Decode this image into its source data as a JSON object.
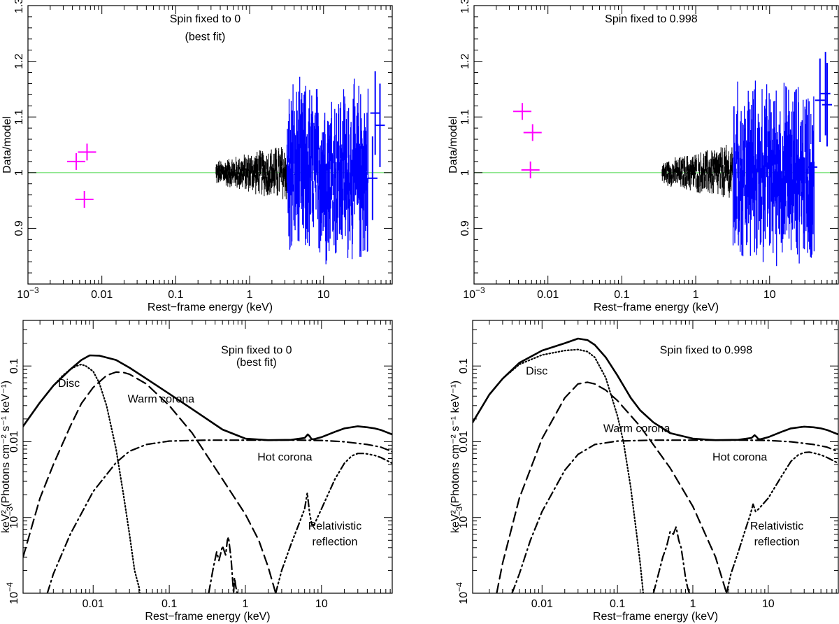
{
  "colors": {
    "data_black": "#000000",
    "data_blue": "#0000ff",
    "data_magenta": "#ff00ff",
    "unity_line": "#66dd66"
  },
  "panels": [
    {
      "chart_data": {
        "type": "scatter",
        "xlabel": "Rest−frame energy (keV)",
        "ylabel": "Data/model",
        "xscale": "log",
        "xlim": [
          0.001,
          85
        ],
        "yscale": "linear",
        "ylim": [
          0.8,
          1.3
        ],
        "xticks": [
          {
            "v": 0.001,
            "base": "10",
            "exp": "−3"
          },
          {
            "v": 0.01,
            "label": "0.01"
          },
          {
            "v": 0.1,
            "label": "0.1"
          },
          {
            "v": 1,
            "label": "1"
          },
          {
            "v": 10,
            "label": "10"
          }
        ],
        "yticks": [
          {
            "v": 0.9,
            "label": "0.9"
          },
          {
            "v": 1,
            "label": "1"
          },
          {
            "v": 1.1,
            "label": "1.1"
          },
          {
            "v": 1.2,
            "label": "1.2"
          },
          {
            "v": 1.3,
            "label": "1.3"
          }
        ],
        "annotations": [
          {
            "text": "Spin fixed to 0",
            "x": 0.25,
            "y": 1.27
          },
          {
            "text": "(best fit)",
            "x": 0.25,
            "y": 1.238
          }
        ],
        "reference_line": 1.0,
        "uv_points": [
          {
            "x": 0.0045,
            "y": 1.02
          },
          {
            "x": 0.0058,
            "y": 0.952
          },
          {
            "x": 0.0063,
            "y": 1.037
          }
        ],
        "xray_soft": {
          "xmin": 0.35,
          "xmax": 3.2,
          "scatter": [
            0.975,
            1.03
          ],
          "mean": 1.0
        },
        "xray_hard": {
          "xmin": 3.2,
          "xmax": 40,
          "scatter": [
            0.92,
            1.08
          ],
          "mean": 1.0
        },
        "xray_hard_points": [
          {
            "x": 46,
            "y": 0.99
          },
          {
            "x": 50,
            "y": 1.107
          },
          {
            "x": 58,
            "y": 1.085
          }
        ],
        "max_err": 0.17
      }
    },
    {
      "chart_data": {
        "type": "scatter",
        "xlabel": "Rest−frame energy (keV)",
        "ylabel": "Data/model",
        "xscale": "log",
        "xlim": [
          0.001,
          85
        ],
        "yscale": "linear",
        "ylim": [
          0.8,
          1.3
        ],
        "xticks": [
          {
            "v": 0.001,
            "base": "10",
            "exp": "−3"
          },
          {
            "v": 0.01,
            "label": "0.01"
          },
          {
            "v": 0.1,
            "label": "0.1"
          },
          {
            "v": 1,
            "label": "1"
          },
          {
            "v": 10,
            "label": "10"
          }
        ],
        "yticks": [
          {
            "v": 0.9,
            "label": "0.9"
          },
          {
            "v": 1,
            "label": "1"
          },
          {
            "v": 1.1,
            "label": "1.1"
          },
          {
            "v": 1.2,
            "label": "1.2"
          },
          {
            "v": 1.3,
            "label": "1.3"
          }
        ],
        "annotations": [
          {
            "text": "Spin fixed to 0.998",
            "x": 0.25,
            "y": 1.27
          }
        ],
        "reference_line": 1.0,
        "uv_points": [
          {
            "x": 0.0045,
            "y": 1.11
          },
          {
            "x": 0.0062,
            "y": 1.072
          },
          {
            "x": 0.0058,
            "y": 1.005
          }
        ],
        "xray_soft": {
          "xmin": 0.35,
          "xmax": 3.2,
          "scatter": [
            0.975,
            1.03
          ],
          "mean": 1.0
        },
        "xray_hard": {
          "xmin": 3.2,
          "xmax": 40,
          "scatter": [
            0.92,
            1.08
          ],
          "mean": 1.0
        },
        "xray_hard_points": [
          {
            "x": 38,
            "y": 1.01
          },
          {
            "x": 48,
            "y": 1.13
          },
          {
            "x": 57,
            "y": 1.142
          },
          {
            "x": 60,
            "y": 1.122
          }
        ],
        "max_err": 0.17
      }
    },
    {
      "chart_data": {
        "type": "line",
        "xlabel": "Rest−frame energy (keV)",
        "ylabel": "keV² (Photons cm⁻² s⁻¹ keV⁻¹)",
        "xscale": "log",
        "xlim": [
          0.0012,
          85
        ],
        "yscale": "log",
        "ylim": [
          0.0001,
          0.4
        ],
        "xticks": [
          {
            "v": 0.01,
            "label": "0.01"
          },
          {
            "v": 0.1,
            "label": "0.1"
          },
          {
            "v": 1,
            "label": "1"
          },
          {
            "v": 10,
            "label": "10"
          }
        ],
        "yticks": [
          {
            "v": 0.0001,
            "base": "10",
            "exp": "−4"
          },
          {
            "v": 0.001,
            "base": "10",
            "exp": "−3"
          },
          {
            "v": 0.01,
            "label": "0.01"
          },
          {
            "v": 0.1,
            "label": "0.1"
          }
        ],
        "annotations": [
          {
            "text": "Spin fixed to 0",
            "x": 1.4,
            "y": 0.145
          },
          {
            "text": "(best fit)",
            "x": 1.4,
            "y": 0.1
          },
          {
            "text": "Disc",
            "x": 0.0048,
            "y": 0.053
          },
          {
            "text": "Warm corona",
            "x": 0.078,
            "y": 0.033
          },
          {
            "text": "Hot corona",
            "x": 3.3,
            "y": 0.0056
          },
          {
            "text": "Relativistic",
            "x": 15,
            "y": 0.00069
          },
          {
            "text": "reflection",
            "x": 15,
            "y": 0.00043
          }
        ],
        "series": [
          {
            "name": "Total",
            "dash": "solid",
            "x": [
              0.0012,
              0.002,
              0.003,
              0.005,
              0.007,
              0.009,
              0.012,
              0.02,
              0.03,
              0.05,
              0.1,
              0.2,
              0.5,
              1,
              2,
              4,
              6,
              6.6,
              7.0,
              7.4,
              8,
              10,
              15,
              20,
              30,
              40,
              50,
              60,
              85
            ],
            "y": [
              0.016,
              0.033,
              0.055,
              0.09,
              0.12,
              0.138,
              0.137,
              0.12,
              0.095,
              0.068,
              0.043,
              0.027,
              0.0145,
              0.011,
              0.0105,
              0.0106,
              0.0112,
              0.0125,
              0.0118,
              0.0108,
              0.0108,
              0.0115,
              0.0135,
              0.015,
              0.016,
              0.0155,
              0.015,
              0.0143,
              0.0125
            ]
          },
          {
            "name": "Disc",
            "dash": "dot",
            "x": [
              0.0012,
              0.002,
              0.003,
              0.004,
              0.005,
              0.006,
              0.007,
              0.008,
              0.01,
              0.012,
              0.015,
              0.02,
              0.025,
              0.03,
              0.035,
              0.04,
              0.045
            ],
            "y": [
              0.016,
              0.033,
              0.055,
              0.075,
              0.09,
              0.1,
              0.105,
              0.1,
              0.085,
              0.06,
              0.03,
              0.008,
              0.002,
              0.0006,
              0.0002,
              0.00012,
              5e-05
            ]
          },
          {
            "name": "Warm corona",
            "dash": "dash",
            "x": [
              0.0012,
              0.002,
              0.003,
              0.005,
              0.007,
              0.01,
              0.015,
              0.02,
              0.025,
              0.03,
              0.05,
              0.1,
              0.2,
              0.5,
              1,
              1.5,
              2,
              2.5
            ],
            "y": [
              0.0003,
              0.0018,
              0.005,
              0.016,
              0.032,
              0.052,
              0.075,
              0.083,
              0.082,
              0.078,
              0.058,
              0.03,
              0.013,
              0.0032,
              0.0011,
              0.0005,
              0.00022,
              0.0001
            ]
          },
          {
            "name": "Hot corona",
            "dash": "dashdot",
            "x": [
              0.0025,
              0.003,
              0.005,
              0.01,
              0.02,
              0.03,
              0.05,
              0.1,
              0.3,
              1,
              5,
              10,
              20,
              40,
              60,
              85
            ],
            "y": [
              0.0001,
              0.00018,
              0.0006,
              0.0022,
              0.0053,
              0.0075,
              0.0092,
              0.0102,
              0.0105,
              0.0105,
              0.0105,
              0.0104,
              0.01,
              0.0092,
              0.0085,
              0.0074
            ]
          },
          {
            "name": "Relativistic reflection",
            "dash": "dashdotdotdot",
            "x": [
              2.5,
              3,
              4,
              5,
              6,
              6.5,
              7,
              7.5,
              8,
              10,
              15,
              20,
              25,
              30,
              35,
              40,
              50,
              60,
              85
            ],
            "y": [
              0.0001,
              0.0002,
              0.00045,
              0.0008,
              0.0013,
              0.0021,
              0.0011,
              0.0008,
              0.0008,
              0.0013,
              0.0032,
              0.0052,
              0.0065,
              0.007,
              0.007,
              0.0069,
              0.0066,
              0.0062,
              0.0052
            ]
          },
          {
            "name": "Ionised reflection",
            "dash": "dashdot",
            "x": [
              0.33,
              0.38,
              0.42,
              0.45,
              0.5,
              0.55,
              0.58,
              0.6,
              0.65,
              0.7,
              0.72,
              0.75,
              0.78
            ],
            "y": [
              0.0001,
              0.00022,
              0.00035,
              0.00027,
              0.00042,
              0.00032,
              0.0005,
              0.00055,
              0.00028,
              0.0001,
              0.00016,
              0.00012,
              0.0001
            ]
          }
        ]
      }
    },
    {
      "chart_data": {
        "type": "line",
        "xlabel": "Rest−frame energy (keV)",
        "ylabel": "keV² (Photons cm⁻² s⁻¹ keV⁻¹)",
        "xscale": "log",
        "xlim": [
          0.0012,
          85
        ],
        "yscale": "log",
        "ylim": [
          0.0001,
          0.4
        ],
        "xticks": [
          {
            "v": 0.01,
            "label": "0.01"
          },
          {
            "v": 0.1,
            "label": "0.1"
          },
          {
            "v": 1,
            "label": "1"
          },
          {
            "v": 10,
            "label": "10"
          }
        ],
        "yticks": [
          {
            "v": 0.0001,
            "base": "10",
            "exp": "−4"
          },
          {
            "v": 0.001,
            "base": "10",
            "exp": "−3"
          },
          {
            "v": 0.01,
            "label": "0.01"
          },
          {
            "v": 0.1,
            "label": "0.1"
          }
        ],
        "annotations": [
          {
            "text": "Spin fixed to 0.998",
            "x": 1.5,
            "y": 0.145
          },
          {
            "text": "Disc",
            "x": 0.0085,
            "y": 0.077
          },
          {
            "text": "Warm corona",
            "x": 0.18,
            "y": 0.0134
          },
          {
            "text": "Hot corona",
            "x": 4.2,
            "y": 0.0056
          },
          {
            "text": "Relativistic",
            "x": 13,
            "y": 0.00069
          },
          {
            "text": "reflection",
            "x": 13,
            "y": 0.00043
          }
        ],
        "series": [
          {
            "name": "Total",
            "dash": "solid",
            "x": [
              0.0012,
              0.002,
              0.003,
              0.005,
              0.01,
              0.02,
              0.03,
              0.04,
              0.05,
              0.07,
              0.1,
              0.15,
              0.2,
              0.3,
              0.5,
              1,
              2,
              4,
              6,
              6.6,
              7.0,
              7.4,
              8,
              10,
              15,
              20,
              30,
              40,
              50,
              60,
              85
            ],
            "y": [
              0.018,
              0.042,
              0.068,
              0.11,
              0.16,
              0.2,
              0.23,
              0.22,
              0.19,
              0.13,
              0.075,
              0.038,
              0.026,
              0.018,
              0.013,
              0.011,
              0.0105,
              0.0106,
              0.0112,
              0.0122,
              0.0116,
              0.0108,
              0.0108,
              0.0115,
              0.0135,
              0.015,
              0.0158,
              0.0155,
              0.015,
              0.0143,
              0.0125
            ]
          },
          {
            "name": "Disc",
            "dash": "dot",
            "x": [
              0.0012,
              0.002,
              0.003,
              0.005,
              0.01,
              0.02,
              0.03,
              0.04,
              0.05,
              0.07,
              0.1,
              0.12,
              0.15,
              0.18,
              0.2,
              0.22
            ],
            "y": [
              0.018,
              0.042,
              0.068,
              0.105,
              0.14,
              0.16,
              0.165,
              0.155,
              0.13,
              0.07,
              0.022,
              0.01,
              0.0025,
              0.0006,
              0.00025,
              0.0001
            ]
          },
          {
            "name": "Warm corona",
            "dash": "dash",
            "x": [
              0.0025,
              0.003,
              0.005,
              0.01,
              0.02,
              0.03,
              0.04,
              0.05,
              0.07,
              0.1,
              0.2,
              0.5,
              1,
              2,
              2.8
            ],
            "y": [
              0.0001,
              0.00025,
              0.0018,
              0.011,
              0.038,
              0.058,
              0.061,
              0.058,
              0.048,
              0.035,
              0.016,
              0.0045,
              0.0014,
              0.0003,
              0.0001
            ]
          },
          {
            "name": "Hot corona",
            "dash": "dashdot",
            "x": [
              0.004,
              0.005,
              0.007,
              0.01,
              0.02,
              0.03,
              0.05,
              0.1,
              0.3,
              1,
              5,
              10,
              20,
              40,
              60,
              85
            ],
            "y": [
              0.0001,
              0.00018,
              0.0005,
              0.0012,
              0.0042,
              0.0068,
              0.0092,
              0.0102,
              0.0105,
              0.0105,
              0.0105,
              0.0104,
              0.01,
              0.0092,
              0.0085,
              0.0074
            ]
          },
          {
            "name": "Relativistic reflection",
            "dash": "dashdotdotdot",
            "x": [
              2.8,
              3.2,
              4,
              5,
              5.8,
              6.3,
              6.8,
              7.5,
              8,
              10,
              15,
              20,
              25,
              30,
              35,
              40,
              50,
              60,
              85
            ],
            "y": [
              0.0001,
              0.00018,
              0.00035,
              0.0007,
              0.0011,
              0.0015,
              0.0012,
              0.0013,
              0.0014,
              0.0018,
              0.0035,
              0.0055,
              0.0067,
              0.0072,
              0.0073,
              0.0071,
              0.0067,
              0.0062,
              0.0052
            ]
          },
          {
            "name": "Ionised reflection",
            "dash": "dashdot",
            "x": [
              0.3,
              0.35,
              0.4,
              0.45,
              0.5,
              0.55,
              0.6,
              0.65,
              0.7,
              0.75,
              0.8,
              0.85,
              0.9
            ],
            "y": [
              0.0001,
              0.00018,
              0.0003,
              0.00042,
              0.00065,
              0.0006,
              0.00075,
              0.0005,
              0.0004,
              0.00025,
              0.00016,
              0.00012,
              0.0001
            ]
          }
        ]
      }
    }
  ]
}
